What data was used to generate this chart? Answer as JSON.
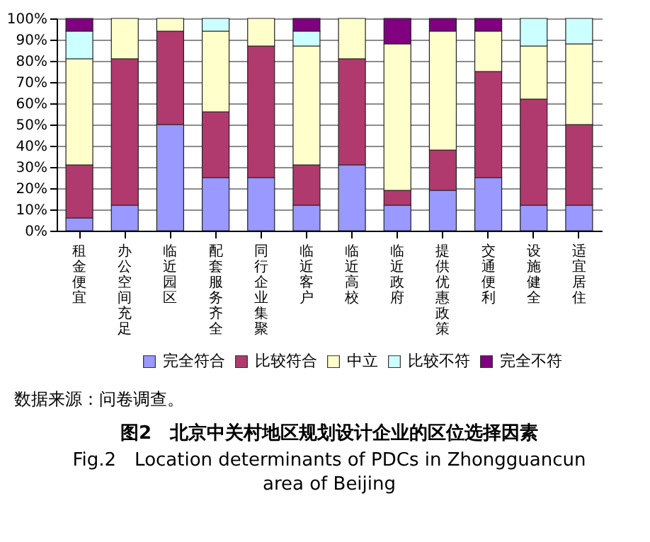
{
  "chart_data": {
    "type": "bar",
    "stacked": true,
    "title": "图2　北京中关村地区规划设计企业的区位选择因素",
    "subtitle": "Fig.2　Location determinants of PDCs in Zhongguancun area of Beijing",
    "annotations": [
      "数据来源：问卷调查。"
    ],
    "categories": [
      "租金便宜",
      "办公空间充足",
      "临近园区",
      "配套服务齐全",
      "同行企业集聚",
      "临近客户",
      "临近高校",
      "临近政府",
      "提供优惠政策",
      "交通便利",
      "设施健全",
      "适宜居住"
    ],
    "series": [
      {
        "name": "完全符合",
        "color": "#9999ff",
        "values": [
          6,
          12,
          50,
          25,
          25,
          12,
          31,
          12,
          19,
          25,
          12,
          12
        ]
      },
      {
        "name": "比较符合",
        "color": "#b03a6e",
        "values": [
          25,
          69,
          44,
          31,
          62,
          19,
          50,
          7,
          19,
          50,
          50,
          38
        ]
      },
      {
        "name": "中立",
        "color": "#ffffcc",
        "values": [
          50,
          19,
          6,
          38,
          13,
          56,
          19,
          69,
          56,
          19,
          25,
          38
        ]
      },
      {
        "name": "比较不符",
        "color": "#ccffff",
        "values": [
          13,
          0,
          0,
          6,
          0,
          7,
          0,
          0,
          0,
          0,
          13,
          12
        ]
      },
      {
        "name": "完全不符",
        "color": "#800080",
        "values": [
          6,
          0,
          0,
          0,
          0,
          6,
          0,
          12,
          6,
          6,
          0,
          0
        ]
      }
    ],
    "ylim": [
      0,
      100
    ],
    "yticks": [
      {
        "value": 0,
        "label": "0%"
      },
      {
        "value": 10,
        "label": "10%"
      },
      {
        "value": 20,
        "label": "20%"
      },
      {
        "value": 30,
        "label": "30%"
      },
      {
        "value": 40,
        "label": "40%"
      },
      {
        "value": 50,
        "label": "50%"
      },
      {
        "value": 60,
        "label": "60%"
      },
      {
        "value": 70,
        "label": "70%"
      },
      {
        "value": 80,
        "label": "80%"
      },
      {
        "value": 90,
        "label": "90%"
      },
      {
        "value": 100,
        "label": "100%"
      }
    ],
    "grid": "y",
    "legend": "bottom"
  }
}
